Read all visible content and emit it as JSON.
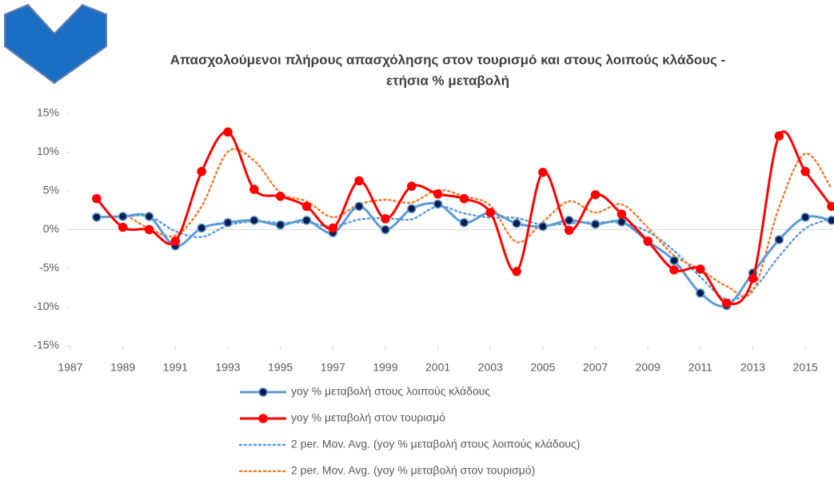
{
  "chart_data": {
    "type": "line",
    "title": [
      "Απασχολούμενοι πλήρους απασχόλησης στον τουρισμό και στους λοιπούς κλάδους -",
      "ετήσια % μεταβολή"
    ],
    "x": [
      1988,
      1989,
      1990,
      1991,
      1992,
      1993,
      1994,
      1995,
      1996,
      1997,
      1998,
      1999,
      2000,
      2001,
      2002,
      2003,
      2004,
      2005,
      2006,
      2007,
      2008,
      2009,
      2010,
      2011,
      2012,
      2013,
      2014,
      2015,
      2016
    ],
    "series": [
      {
        "name": "yoy % μεταβολή στους λοιπούς κλάδους",
        "color": "#5b9bd5",
        "marker_color": "#0d1b4c",
        "markers": true,
        "dashed": false,
        "values": [
          1.6,
          1.7,
          1.7,
          -2.1,
          0.2,
          0.9,
          1.2,
          0.6,
          1.2,
          -0.4,
          3.0,
          0.0,
          2.7,
          3.3,
          0.9,
          2.2,
          0.8,
          0.4,
          1.2,
          0.7,
          1.0,
          -1.5,
          -4.0,
          -8.2,
          -9.8,
          -5.6,
          -1.3,
          1.6,
          1.2
        ]
      },
      {
        "name": "yoy % μεταβολή στον τουρισμό",
        "color": "#ff0000",
        "marker_color": "#ff0000",
        "markers": true,
        "dashed": false,
        "values": [
          4.0,
          0.3,
          0.0,
          -1.5,
          7.5,
          12.6,
          5.2,
          4.3,
          3.0,
          0.2,
          6.3,
          1.4,
          5.6,
          4.6,
          4.0,
          2.2,
          -5.4,
          7.4,
          -0.1,
          4.5,
          2.0,
          -1.5,
          -5.2,
          -5.1,
          -9.5,
          -6.3,
          12.1,
          7.5,
          3.0
        ]
      },
      {
        "name": "2 per. Mov. Avg. (yoy % μεταβολή στους λοιπούς κλάδους)",
        "color": "#5b9bd5",
        "markers": false,
        "dashed": true,
        "values": [
          null,
          1.65,
          1.7,
          -0.2,
          -0.95,
          0.55,
          1.05,
          0.9,
          0.9,
          0.4,
          1.3,
          1.5,
          1.35,
          3.0,
          2.1,
          1.55,
          1.5,
          0.6,
          0.8,
          0.95,
          0.85,
          -0.25,
          -2.75,
          -6.1,
          -9.0,
          -7.7,
          -3.45,
          0.15,
          1.4
        ]
      },
      {
        "name": "2 per. Mov. Avg. (yoy % μεταβολή στον τουρισμό)",
        "color": "#ed7d31",
        "markers": false,
        "dashed": true,
        "values": [
          null,
          2.15,
          0.15,
          -0.75,
          3.0,
          10.05,
          8.9,
          4.75,
          3.65,
          1.6,
          3.25,
          3.85,
          3.5,
          5.1,
          4.3,
          3.1,
          -1.6,
          1.0,
          3.65,
          2.2,
          3.25,
          0.25,
          -3.35,
          -5.15,
          -7.3,
          -7.9,
          2.9,
          9.8,
          5.25
        ]
      }
    ],
    "xlim": [
      1987,
      2016
    ],
    "xticks": [
      1987,
      1989,
      1991,
      1993,
      1995,
      1997,
      1999,
      2001,
      2003,
      2005,
      2007,
      2009,
      2011,
      2013,
      2015
    ],
    "ylim": [
      -15,
      15
    ],
    "yticks": [
      {
        "value": -15,
        "label": "-15%"
      },
      {
        "value": -10,
        "label": "-10%"
      },
      {
        "value": -5,
        "label": "-5%"
      },
      {
        "value": 0,
        "label": "0%"
      },
      {
        "value": 5,
        "label": "5%"
      },
      {
        "value": 10,
        "label": "10%"
      },
      {
        "value": 15,
        "label": "15%"
      }
    ],
    "grid": false,
    "legend": "bottom"
  }
}
